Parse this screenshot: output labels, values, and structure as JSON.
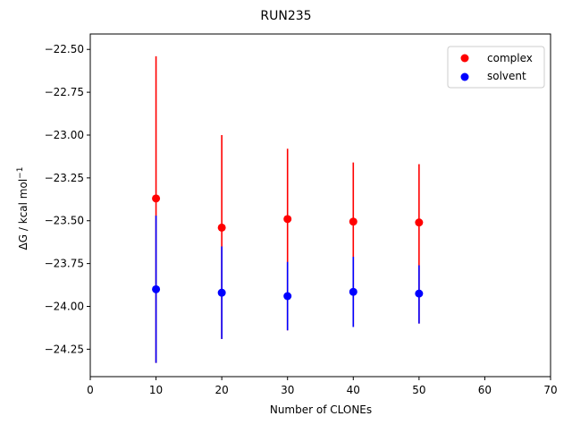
{
  "chart_data": {
    "type": "scatter",
    "title": "RUN235",
    "xlabel": "Number of CLONEs",
    "ylabel": "ΔG / kcal mol",
    "ylabel_sup": "−1",
    "xlim": [
      0,
      70
    ],
    "ylim": [
      -24.41,
      -22.41
    ],
    "x_ticks": [
      0,
      10,
      20,
      30,
      40,
      50,
      60,
      70
    ],
    "x_tick_labels": [
      "0",
      "10",
      "20",
      "30",
      "40",
      "50",
      "60",
      "70"
    ],
    "y_ticks": [
      -22.5,
      -22.75,
      -23.0,
      -23.25,
      -23.5,
      -23.75,
      -24.0,
      -24.25
    ],
    "y_tick_labels": [
      "−22.50",
      "−22.75",
      "−23.00",
      "−23.25",
      "−23.50",
      "−23.75",
      "−24.00",
      "−24.25"
    ],
    "grid": false,
    "legend": "top-right",
    "series": [
      {
        "name": "complex",
        "color": "#ff0000",
        "x": [
          10,
          20,
          30,
          40,
          50
        ],
        "y": [
          -23.37,
          -23.54,
          -23.49,
          -23.505,
          -23.51
        ],
        "err_lower": [
          -24.33,
          -24.19,
          -24.14,
          -24.12,
          -24.1
        ],
        "err_upper": [
          -22.54,
          -23.0,
          -23.08,
          -23.16,
          -23.17
        ]
      },
      {
        "name": "solvent",
        "color": "#0000ff",
        "x": [
          10,
          20,
          30,
          40,
          50
        ],
        "y": [
          -23.9,
          -23.92,
          -23.94,
          -23.915,
          -23.925
        ],
        "err_lower": [
          -24.33,
          -24.19,
          -24.14,
          -24.12,
          -24.1
        ],
        "err_upper": [
          -23.47,
          -23.65,
          -23.74,
          -23.71,
          -23.76
        ]
      }
    ]
  }
}
